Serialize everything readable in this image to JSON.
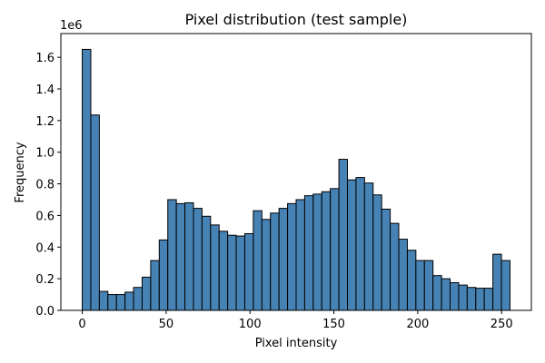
{
  "chart_data": {
    "type": "bar",
    "title": "Pixel distribution (test sample)",
    "xlabel": "Pixel intensity",
    "ylabel": "Frequency",
    "y_offset_label": "1e6",
    "x_range": [
      0,
      255
    ],
    "bins": 50,
    "xlim": [
      -12.75,
      267.75
    ],
    "ylim": [
      0,
      1.75
    ],
    "x_ticks": [
      0,
      50,
      100,
      150,
      200,
      250
    ],
    "y_ticks": [
      0.0,
      0.2,
      0.4,
      0.6,
      0.8,
      1.0,
      1.2,
      1.4,
      1.6
    ],
    "y_tick_labels": [
      "0.0",
      "0.2",
      "0.4",
      "0.6",
      "0.8",
      "1.0",
      "1.2",
      "1.4",
      "1.6"
    ],
    "grid": false,
    "bar_color": "#4682b4",
    "edge_color": "#000000",
    "values": [
      1.65,
      1.235,
      0.12,
      0.1,
      0.1,
      0.115,
      0.145,
      0.21,
      0.315,
      0.445,
      0.7,
      0.675,
      0.68,
      0.645,
      0.595,
      0.54,
      0.5,
      0.475,
      0.47,
      0.485,
      0.63,
      0.575,
      0.615,
      0.645,
      0.675,
      0.7,
      0.725,
      0.735,
      0.75,
      0.77,
      0.955,
      0.825,
      0.84,
      0.805,
      0.73,
      0.64,
      0.55,
      0.45,
      0.38,
      0.315,
      0.315,
      0.22,
      0.2,
      0.175,
      0.16,
      0.145,
      0.14,
      0.14,
      0.355,
      0.315
    ]
  }
}
